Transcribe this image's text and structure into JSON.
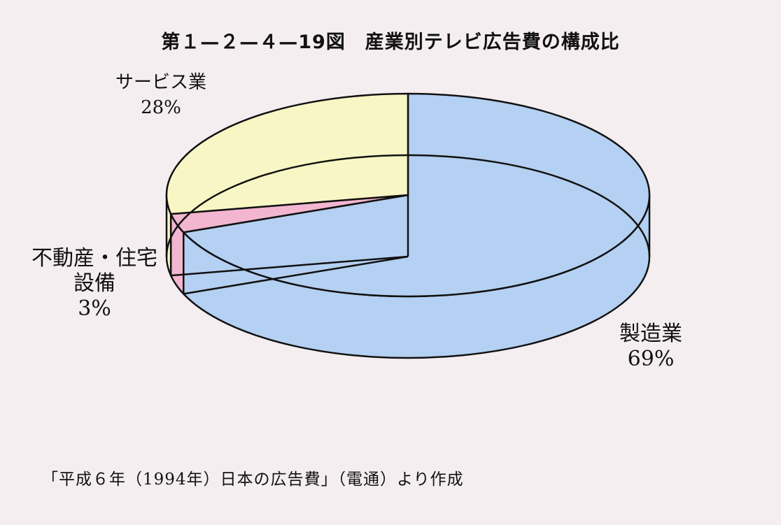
{
  "title": "第１—２—４—19図　産業別テレビ広告費の構成比",
  "source": "「平成６年（1994年）日本の広告費」（電通）より作成",
  "chart_data": {
    "type": "pie",
    "title": "第１—２—４—19図　産業別テレビ広告費の構成比",
    "style": "3d",
    "slices": [
      {
        "label": "製造業",
        "value": 69,
        "value_label": "69%",
        "color": "#b4d0f2"
      },
      {
        "label": "不動産・住宅\n設備",
        "value": 3,
        "value_label": "3%",
        "color": "#f3b6d0"
      },
      {
        "label": "サービス業",
        "value": 28,
        "value_label": "28%",
        "color": "#f8f6c4"
      }
    ]
  }
}
